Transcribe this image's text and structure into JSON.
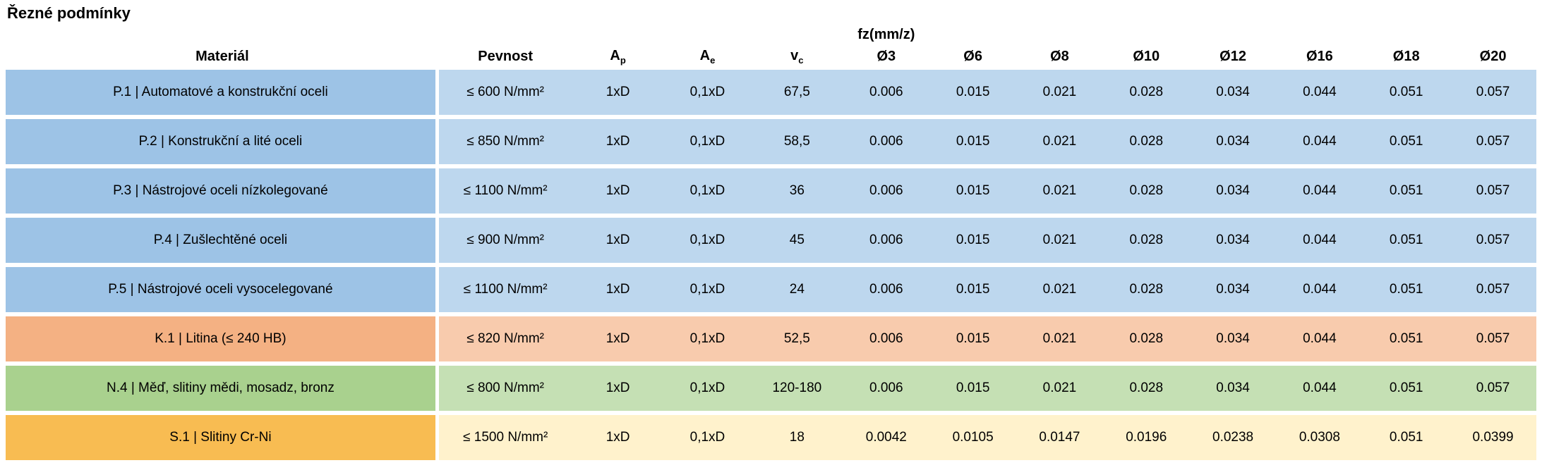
{
  "page": {
    "title": "Řezné podmínky"
  },
  "table": {
    "group_header": "fz(mm/z)",
    "headers": {
      "material": "Materiál",
      "pevnost": "Pevnost",
      "ap": {
        "base": "A",
        "sub": "p"
      },
      "ae": {
        "base": "A",
        "sub": "e"
      },
      "vc": {
        "base": "v",
        "sub": "c"
      },
      "diameters": [
        "Ø3",
        "Ø6",
        "Ø8",
        "Ø10",
        "Ø12",
        "Ø16",
        "Ø18",
        "Ø20"
      ]
    },
    "colors": {
      "blue": {
        "dark": "#9DC3E6",
        "light": "#BDD7EE"
      },
      "orange": {
        "dark": "#F4B183",
        "light": "#F8CBAD"
      },
      "green": {
        "dark": "#A9D18E",
        "light": "#C5E0B4"
      },
      "gold": {
        "dark": "#F8BC52",
        "light": "#FFF2CC"
      }
    },
    "rows": [
      {
        "group": "blue",
        "material": "P.1 | Automatové a konstrukční oceli",
        "pevnost": "≤ 600 N/mm²",
        "ap": "1xD",
        "ae": "0,1xD",
        "vc": "67,5",
        "fz": [
          "0.006",
          "0.015",
          "0.021",
          "0.028",
          "0.034",
          "0.044",
          "0.051",
          "0.057"
        ]
      },
      {
        "group": "blue",
        "material": "P.2 | Konstrukční a lité oceli",
        "pevnost": "≤ 850 N/mm²",
        "ap": "1xD",
        "ae": "0,1xD",
        "vc": "58,5",
        "fz": [
          "0.006",
          "0.015",
          "0.021",
          "0.028",
          "0.034",
          "0.044",
          "0.051",
          "0.057"
        ]
      },
      {
        "group": "blue",
        "material": "P.3 | Nástrojové oceli nízkolegované",
        "pevnost": "≤ 1100 N/mm²",
        "ap": "1xD",
        "ae": "0,1xD",
        "vc": "36",
        "fz": [
          "0.006",
          "0.015",
          "0.021",
          "0.028",
          "0.034",
          "0.044",
          "0.051",
          "0.057"
        ]
      },
      {
        "group": "blue",
        "material": "P.4 | Zušlechtěné oceli",
        "pevnost": "≤ 900 N/mm²",
        "ap": "1xD",
        "ae": "0,1xD",
        "vc": "45",
        "fz": [
          "0.006",
          "0.015",
          "0.021",
          "0.028",
          "0.034",
          "0.044",
          "0.051",
          "0.057"
        ]
      },
      {
        "group": "blue",
        "material": "P.5 | Nástrojové oceli vysocelegované",
        "pevnost": "≤ 1100 N/mm²",
        "ap": "1xD",
        "ae": "0,1xD",
        "vc": "24",
        "fz": [
          "0.006",
          "0.015",
          "0.021",
          "0.028",
          "0.034",
          "0.044",
          "0.051",
          "0.057"
        ]
      },
      {
        "group": "orange",
        "material": "K.1 | Litina (≤ 240 HB)",
        "pevnost": "≤ 820 N/mm²",
        "ap": "1xD",
        "ae": "0,1xD",
        "vc": "52,5",
        "fz": [
          "0.006",
          "0.015",
          "0.021",
          "0.028",
          "0.034",
          "0.044",
          "0.051",
          "0.057"
        ]
      },
      {
        "group": "green",
        "material": "N.4 | Měď, slitiny mědi, mosadz, bronz",
        "pevnost": "≤ 800 N/mm²",
        "ap": "1xD",
        "ae": "0,1xD",
        "vc": "120-180",
        "fz": [
          "0.006",
          "0.015",
          "0.021",
          "0.028",
          "0.034",
          "0.044",
          "0.051",
          "0.057"
        ]
      },
      {
        "group": "gold",
        "material": "S.1 | Slitiny Cr-Ni",
        "pevnost": "≤ 1500 N/mm²",
        "ap": "1xD",
        "ae": "0,1xD",
        "vc": "18",
        "fz": [
          "0.0042",
          "0.0105",
          "0.0147",
          "0.0196",
          "0.0238",
          "0.0308",
          "0.051",
          "0.0399"
        ]
      }
    ]
  }
}
